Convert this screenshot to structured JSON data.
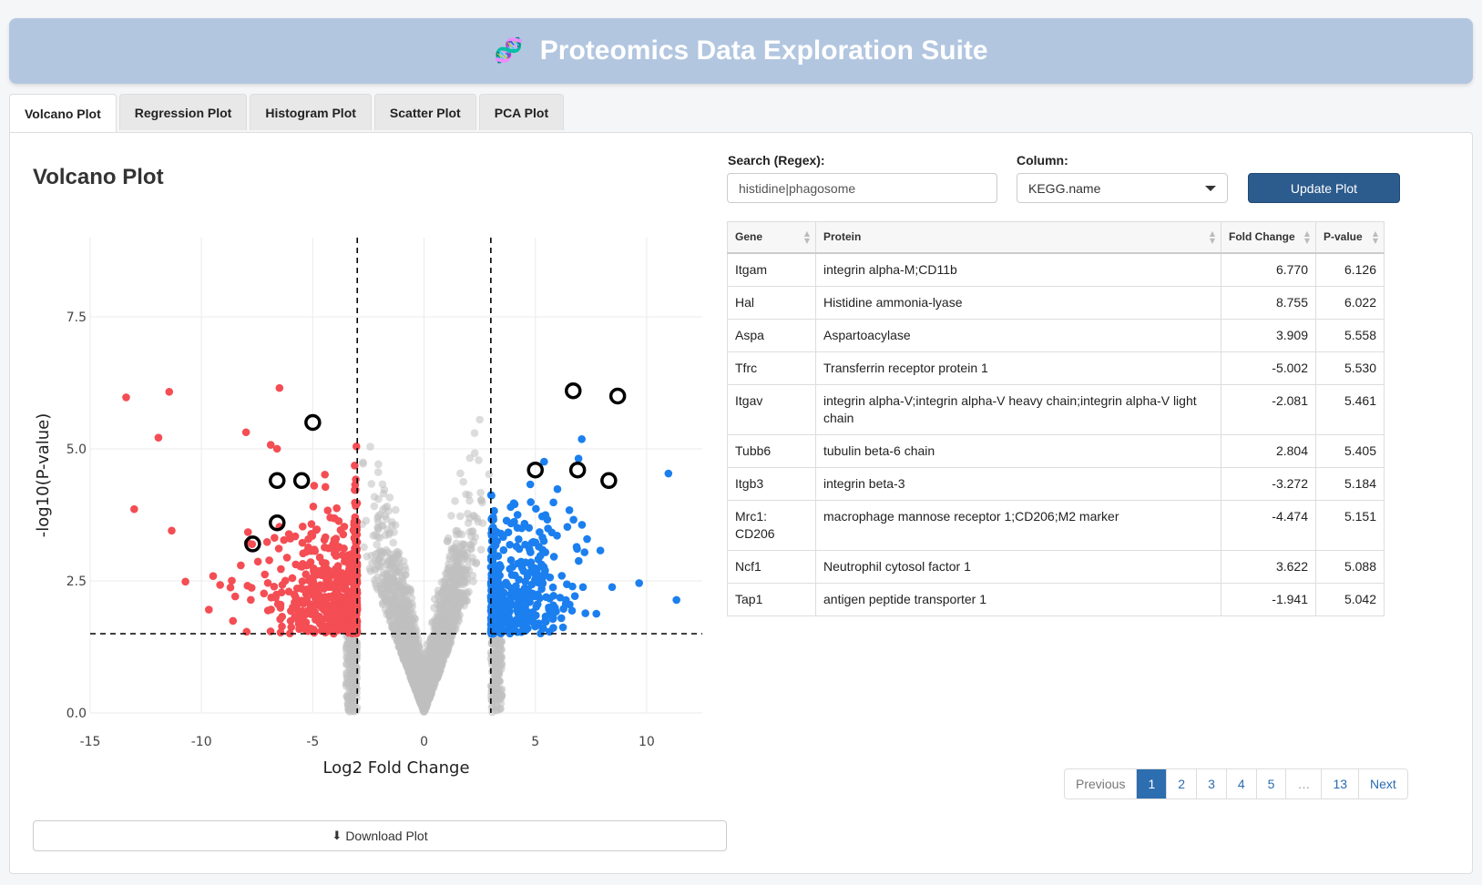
{
  "header": {
    "title": "Proteomics Data Exploration Suite",
    "icon": "dna-icon"
  },
  "tabs": [
    {
      "label": "Volcano Plot",
      "active": true
    },
    {
      "label": "Regression Plot"
    },
    {
      "label": "Histogram Plot"
    },
    {
      "label": "Scatter Plot"
    },
    {
      "label": "PCA Plot"
    }
  ],
  "plot": {
    "title": "Volcano Plot",
    "download_label": "Download Plot"
  },
  "controls": {
    "search_label": "Search (Regex):",
    "search_value": "histidine|phagosome",
    "column_label": "Column:",
    "column_value": "KEGG.name",
    "update_label": "Update Plot"
  },
  "table": {
    "headers": [
      "Gene",
      "Protein",
      "Fold Change",
      "P-value"
    ],
    "rows": [
      [
        "Itgam",
        "integrin alpha-M;CD11b",
        "6.770",
        "6.126"
      ],
      [
        "Hal",
        "Histidine ammonia-lyase",
        "8.755",
        "6.022"
      ],
      [
        "Aspa",
        "Aspartoacylase",
        "3.909",
        "5.558"
      ],
      [
        "Tfrc",
        "Transferrin receptor protein 1",
        "-5.002",
        "5.530"
      ],
      [
        "Itgav",
        "integrin alpha-V;integrin alpha-V heavy chain;integrin alpha-V light chain",
        "-2.081",
        "5.461"
      ],
      [
        "Tubb6",
        "tubulin beta-6 chain",
        "2.804",
        "5.405"
      ],
      [
        "Itgb3",
        "integrin beta-3",
        "-3.272",
        "5.184"
      ],
      [
        "Mrc1: CD206",
        "macrophage mannose receptor 1;CD206;M2 marker",
        "-4.474",
        "5.151"
      ],
      [
        "Ncf1",
        "Neutrophil cytosol factor 1",
        "3.622",
        "5.088"
      ],
      [
        "Tap1",
        "antigen peptide transporter 1",
        "-1.941",
        "5.042"
      ]
    ]
  },
  "pagination": {
    "previous": "Previous",
    "pages": [
      "1",
      "2",
      "3",
      "4",
      "5",
      "…",
      "13"
    ],
    "current": "1",
    "next": "Next"
  },
  "chart_data": {
    "type": "scatter",
    "xlabel": "Log2 Fold Change",
    "ylabel": "-log10(P-value)",
    "xlim": [
      -15,
      12.5
    ],
    "ylim": [
      0,
      9
    ],
    "xticks": [
      "-15",
      "-10",
      "-5",
      "0",
      "5",
      "10"
    ],
    "yticks": [
      "0.0",
      "2.5",
      "5.0",
      "7.5"
    ],
    "fc_threshold": 3,
    "pvalue_threshold": 1.5,
    "grid": true,
    "colors": {
      "down": "#f44d54",
      "up": "#1b7fef",
      "ns": "#bfbfbf",
      "highlight": "#000000"
    },
    "point_estimates": {
      "ns": 3000,
      "down": 650,
      "up": 480
    },
    "highlighted": [
      {
        "x": 6.7,
        "y": 6.1
      },
      {
        "x": 8.7,
        "y": 6.0
      },
      {
        "x": -5.0,
        "y": 5.5
      },
      {
        "x": -5.5,
        "y": 4.4
      },
      {
        "x": -6.6,
        "y": 4.4
      },
      {
        "x": 5.0,
        "y": 4.6
      },
      {
        "x": 6.9,
        "y": 4.6
      },
      {
        "x": 8.3,
        "y": 4.4
      },
      {
        "x": -6.6,
        "y": 3.6
      },
      {
        "x": -7.7,
        "y": 3.2
      }
    ]
  }
}
